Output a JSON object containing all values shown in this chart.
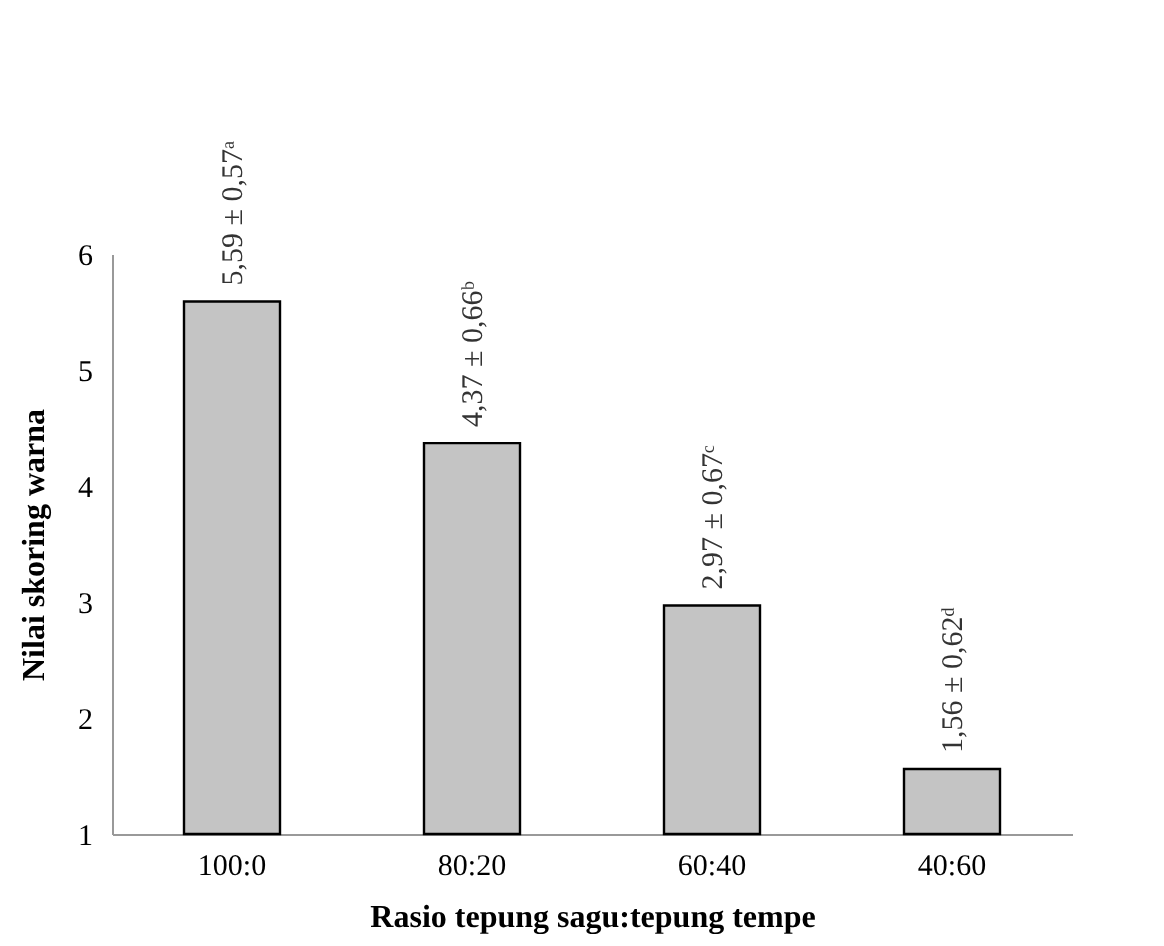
{
  "chart_data": {
    "type": "bar",
    "xlabel": "Rasio tepung sagu:tepung tempe",
    "ylabel": "Nilai skoring warna",
    "categories": [
      "100:0",
      "80:20",
      "60:40",
      "40:60"
    ],
    "values": [
      5.59,
      4.37,
      2.97,
      1.56
    ],
    "value_labels": [
      "5,59 ± 0,57ᵃ",
      "4,37 ± 0,66ᵇ",
      "2,97 ± 0,67ᶜ",
      "1,56 ± 0,62ᵈ"
    ],
    "color": "#c4c4c4",
    "ylim": [
      1,
      6
    ],
    "yticks": [
      1,
      2,
      3,
      4,
      5,
      6
    ],
    "grid": false
  }
}
